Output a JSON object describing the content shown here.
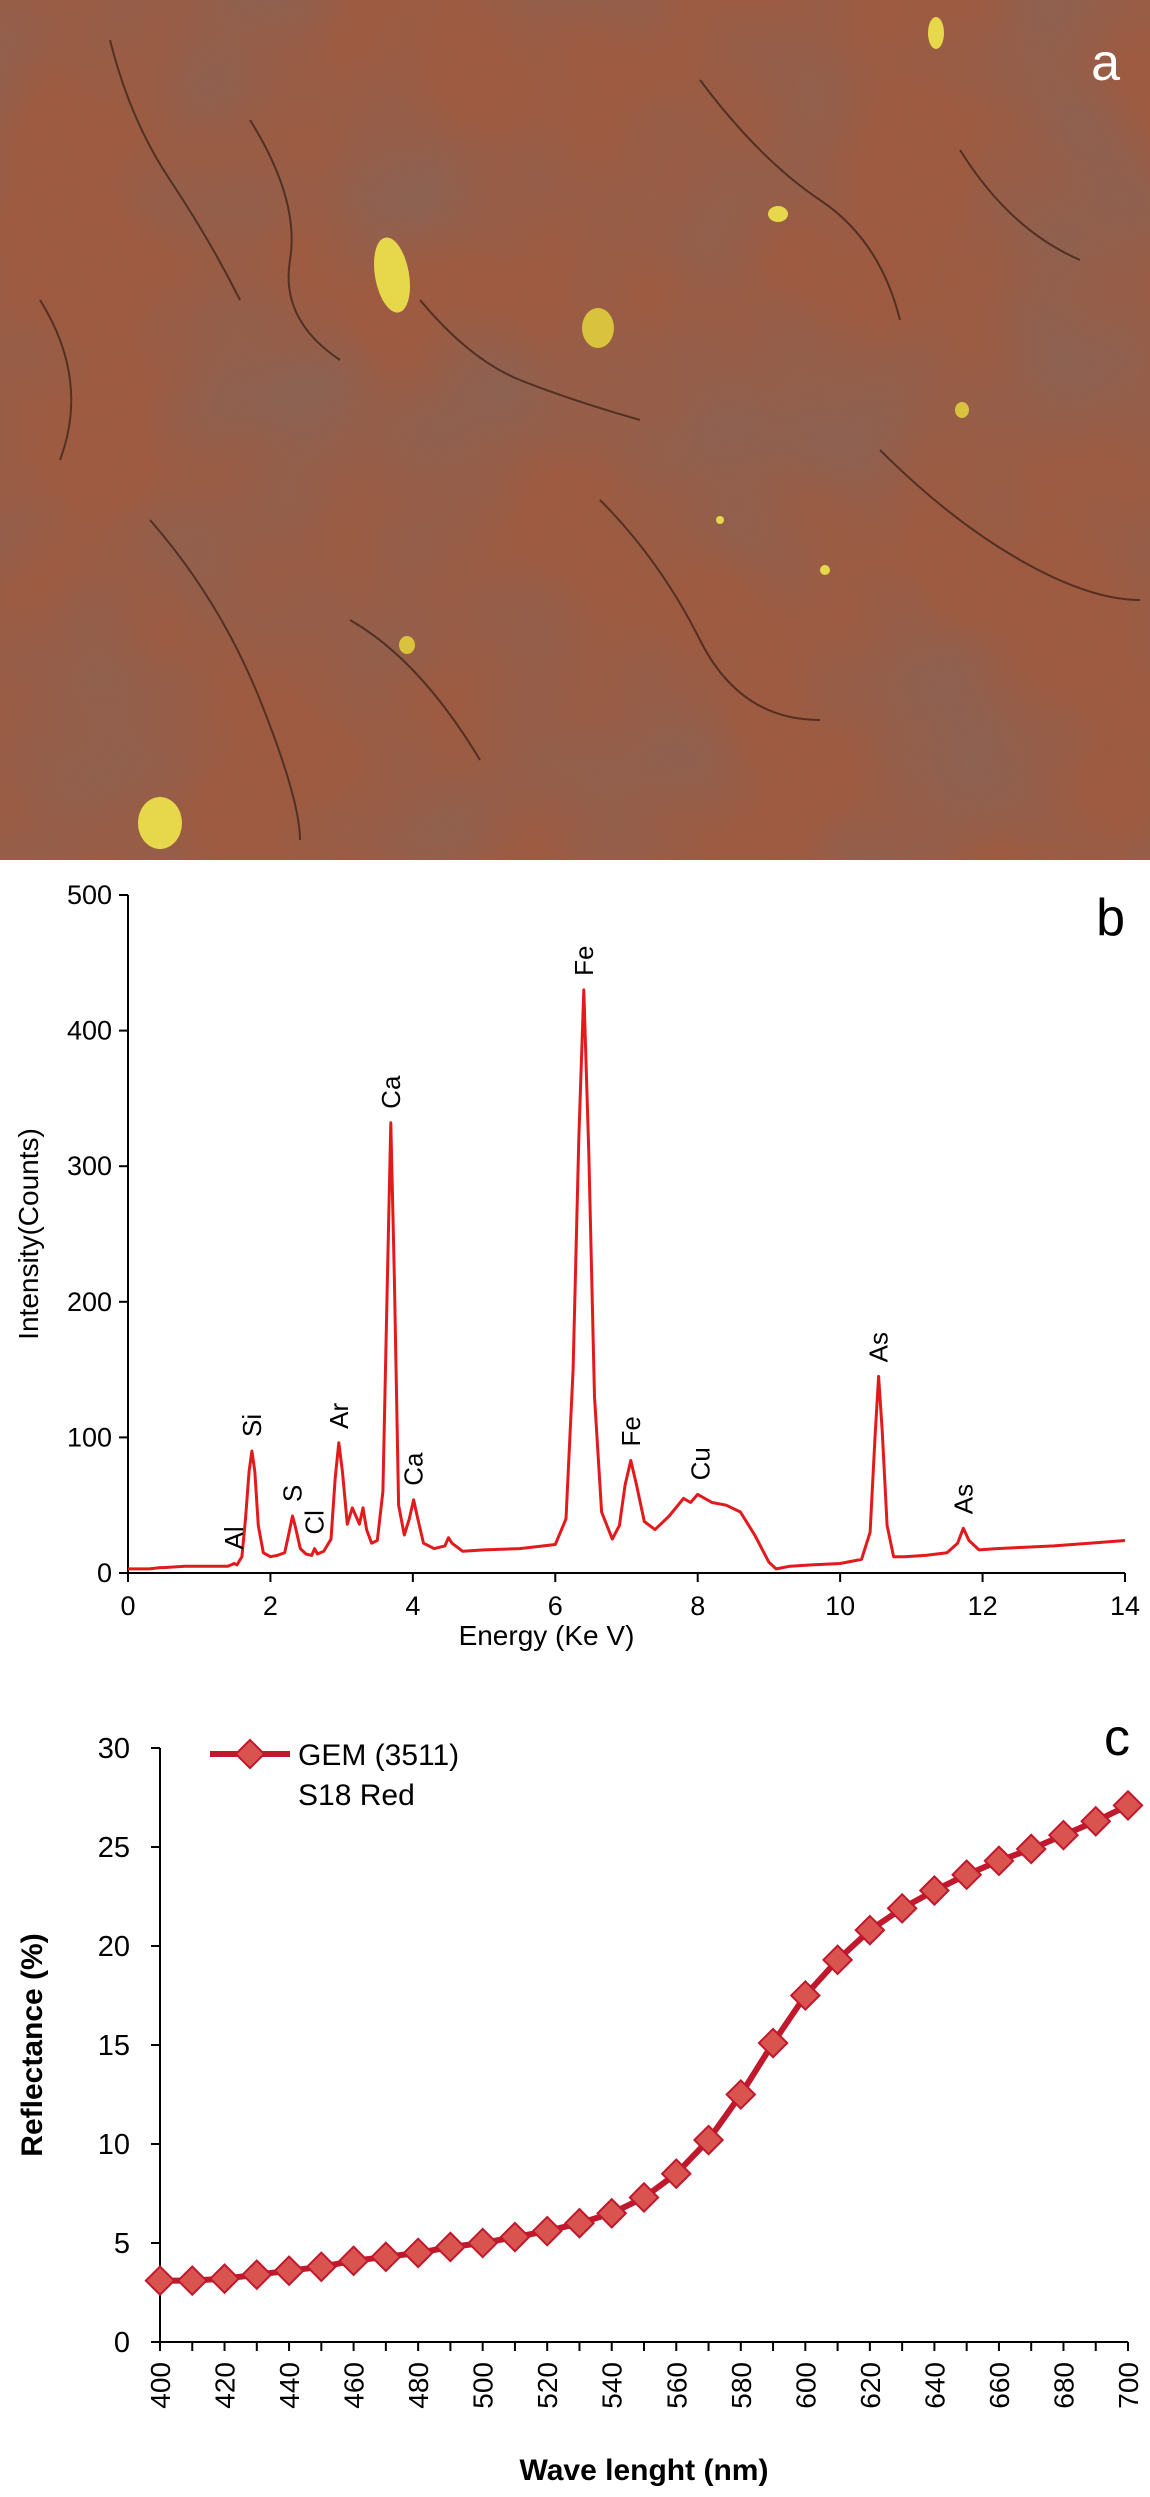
{
  "panel_a": {
    "letter": "a",
    "image_type": "photograph",
    "colors": {
      "base": "#a8583a",
      "dark": "#5c3a2c",
      "inclusion": "#e6d84a"
    }
  },
  "chart_data": [
    {
      "panel": "b",
      "type": "line",
      "letter": "b",
      "xlabel": "Energy  (Ke V)",
      "ylabel": "Intensity(Counts)",
      "xlim": [
        0,
        14
      ],
      "ylim": [
        0,
        500
      ],
      "xticks": [
        "0",
        "2",
        "4",
        "6",
        "8",
        "10",
        "12",
        "14"
      ],
      "yticks": [
        "0",
        "100",
        "200",
        "300",
        "400",
        "500"
      ],
      "grid": false,
      "line_color": "#e31a1c",
      "peaks": [
        {
          "label": "Al",
          "x": 1.49,
          "y": 7
        },
        {
          "label": "Si",
          "x": 1.74,
          "y": 90
        },
        {
          "label": "S",
          "x": 2.31,
          "y": 42
        },
        {
          "label": "Cl",
          "x": 2.62,
          "y": 18
        },
        {
          "label": "Ar",
          "x": 2.96,
          "y": 96
        },
        {
          "label": "Ca",
          "x": 3.69,
          "y": 332
        },
        {
          "label": "Ca",
          "x": 4.01,
          "y": 54
        },
        {
          "label": "Fe",
          "x": 6.4,
          "y": 430
        },
        {
          "label": "Fe",
          "x": 7.06,
          "y": 83
        },
        {
          "label": "Cu",
          "x": 8.04,
          "y": 58
        },
        {
          "label": "As",
          "x": 10.54,
          "y": 145
        },
        {
          "label": "As",
          "x": 11.73,
          "y": 33
        }
      ],
      "x": [
        0,
        0.3,
        0.45,
        0.5,
        0.8,
        1.0,
        1.2,
        1.4,
        1.45,
        1.49,
        1.53,
        1.6,
        1.65,
        1.7,
        1.74,
        1.78,
        1.83,
        1.9,
        2.0,
        2.1,
        2.2,
        2.27,
        2.31,
        2.35,
        2.42,
        2.5,
        2.58,
        2.62,
        2.66,
        2.75,
        2.85,
        2.91,
        2.96,
        3.01,
        3.08,
        3.15,
        3.2,
        3.25,
        3.3,
        3.35,
        3.42,
        3.5,
        3.58,
        3.64,
        3.69,
        3.74,
        3.8,
        3.88,
        3.95,
        4.01,
        4.07,
        4.15,
        4.3,
        4.45,
        4.5,
        4.55,
        4.7,
        5.0,
        5.5,
        6.0,
        6.15,
        6.25,
        6.33,
        6.4,
        6.47,
        6.55,
        6.65,
        6.8,
        6.9,
        6.98,
        7.06,
        7.14,
        7.25,
        7.4,
        7.6,
        7.8,
        7.9,
        8.0,
        8.1,
        8.2,
        8.4,
        8.6,
        8.8,
        9.0,
        9.1,
        9.3,
        9.6,
        10.0,
        10.3,
        10.42,
        10.49,
        10.54,
        10.59,
        10.66,
        10.75,
        10.9,
        11.2,
        11.5,
        11.65,
        11.73,
        11.81,
        11.95,
        12.2,
        12.6,
        13.0,
        13.5,
        14.0
      ],
      "y": [
        3,
        3,
        4,
        4,
        5,
        5,
        5,
        5,
        6,
        7,
        6,
        12,
        40,
        75,
        90,
        75,
        35,
        15,
        12,
        13,
        15,
        32,
        42,
        34,
        18,
        14,
        13,
        18,
        14,
        16,
        25,
        70,
        96,
        75,
        36,
        48,
        42,
        36,
        48,
        32,
        22,
        24,
        60,
        210,
        332,
        220,
        50,
        28,
        40,
        54,
        40,
        22,
        18,
        20,
        26,
        22,
        16,
        17,
        18,
        21,
        40,
        150,
        320,
        430,
        310,
        130,
        45,
        25,
        35,
        65,
        83,
        65,
        38,
        32,
        42,
        55,
        52,
        58,
        55,
        52,
        50,
        45,
        28,
        8,
        3,
        5,
        6,
        7,
        10,
        30,
        100,
        145,
        105,
        35,
        12,
        12,
        13,
        15,
        22,
        33,
        24,
        17,
        18,
        19,
        20,
        22,
        24
      ]
    },
    {
      "panel": "c",
      "type": "line",
      "letter": "c",
      "xlabel": "Wave lenght (nm)",
      "ylabel": "Reflectance (%)",
      "xlim": [
        400,
        700
      ],
      "ylim": [
        0,
        30
      ],
      "xticks": [
        "400",
        "420",
        "440",
        "460",
        "480",
        "500",
        "520",
        "540",
        "560",
        "580",
        "600",
        "620",
        "640",
        "660",
        "680",
        "700"
      ],
      "yticks": [
        "0",
        "5",
        "10",
        "15",
        "20",
        "25",
        "30"
      ],
      "grid": false,
      "legend": {
        "placement": "top-left",
        "line1": "GEM (3511)",
        "line2": "S18 Red"
      },
      "series": [
        {
          "line1": "GEM (3511)",
          "line2": "S18 Red",
          "color": "#c0182c",
          "marker_color": "#d9534f",
          "x": [
            400,
            410,
            420,
            430,
            440,
            450,
            460,
            470,
            480,
            490,
            500,
            510,
            520,
            530,
            540,
            550,
            560,
            570,
            580,
            590,
            600,
            610,
            620,
            630,
            640,
            650,
            660,
            670,
            680,
            690,
            700
          ],
          "values": [
            3.1,
            3.1,
            3.2,
            3.4,
            3.6,
            3.8,
            4.1,
            4.3,
            4.5,
            4.8,
            5.0,
            5.3,
            5.6,
            6.0,
            6.5,
            7.3,
            8.5,
            10.2,
            12.5,
            15.1,
            17.5,
            19.3,
            20.8,
            21.9,
            22.8,
            23.6,
            24.3,
            24.9,
            25.6,
            26.3,
            27.1
          ]
        }
      ]
    }
  ]
}
